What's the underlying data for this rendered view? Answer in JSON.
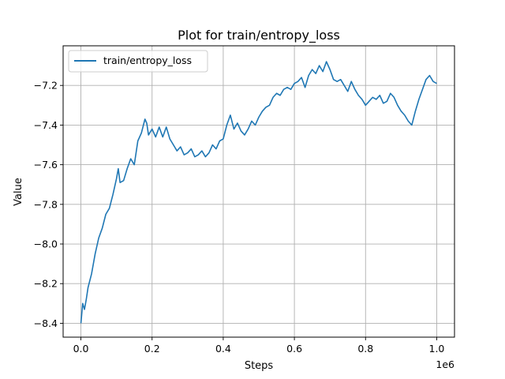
{
  "chart_data": {
    "type": "line",
    "title": "Plot for train/entropy_loss",
    "xlabel": "Steps",
    "ylabel": "Value",
    "x_offset_label": "1e6",
    "xlim": [
      -0.05,
      1.05
    ],
    "ylim": [
      -8.47,
      -7.0
    ],
    "xticks": [
      0.0,
      0.2,
      0.4,
      0.6,
      0.8,
      1.0
    ],
    "xtick_labels": [
      "0.0",
      "0.2",
      "0.4",
      "0.6",
      "0.8",
      "1.0"
    ],
    "yticks": [
      -8.4,
      -8.2,
      -8.0,
      -7.8,
      -7.6,
      -7.4,
      -7.2
    ],
    "ytick_labels": [
      "−8.4",
      "−8.2",
      "−8.0",
      "−7.8",
      "−7.6",
      "−7.4",
      "−7.2"
    ],
    "grid": true,
    "legend_position": "top-left",
    "series": [
      {
        "name": "train/entropy_loss",
        "color": "#1f77b4",
        "x": [
          0.0,
          0.005,
          0.01,
          0.015,
          0.02,
          0.03,
          0.04,
          0.05,
          0.06,
          0.07,
          0.08,
          0.09,
          0.1,
          0.105,
          0.11,
          0.12,
          0.13,
          0.14,
          0.15,
          0.16,
          0.17,
          0.18,
          0.185,
          0.19,
          0.2,
          0.21,
          0.22,
          0.23,
          0.24,
          0.25,
          0.26,
          0.27,
          0.28,
          0.29,
          0.3,
          0.31,
          0.32,
          0.33,
          0.34,
          0.35,
          0.36,
          0.37,
          0.38,
          0.39,
          0.4,
          0.41,
          0.42,
          0.43,
          0.44,
          0.45,
          0.46,
          0.47,
          0.48,
          0.49,
          0.5,
          0.51,
          0.52,
          0.53,
          0.54,
          0.55,
          0.56,
          0.57,
          0.58,
          0.59,
          0.6,
          0.61,
          0.62,
          0.63,
          0.64,
          0.65,
          0.66,
          0.67,
          0.68,
          0.69,
          0.7,
          0.71,
          0.72,
          0.73,
          0.74,
          0.75,
          0.76,
          0.77,
          0.78,
          0.79,
          0.8,
          0.81,
          0.82,
          0.83,
          0.84,
          0.85,
          0.86,
          0.87,
          0.88,
          0.89,
          0.9,
          0.91,
          0.92,
          0.93,
          0.94,
          0.95,
          0.96,
          0.97,
          0.98,
          0.99,
          1.0
        ],
        "y": [
          -8.4,
          -8.3,
          -8.33,
          -8.28,
          -8.22,
          -8.15,
          -8.05,
          -7.97,
          -7.92,
          -7.85,
          -7.82,
          -7.75,
          -7.67,
          -7.62,
          -7.69,
          -7.68,
          -7.62,
          -7.57,
          -7.6,
          -7.48,
          -7.44,
          -7.37,
          -7.39,
          -7.45,
          -7.42,
          -7.46,
          -7.41,
          -7.46,
          -7.41,
          -7.47,
          -7.5,
          -7.53,
          -7.51,
          -7.55,
          -7.54,
          -7.52,
          -7.56,
          -7.55,
          -7.53,
          -7.56,
          -7.54,
          -7.5,
          -7.52,
          -7.48,
          -7.47,
          -7.4,
          -7.35,
          -7.42,
          -7.39,
          -7.43,
          -7.45,
          -7.42,
          -7.38,
          -7.4,
          -7.36,
          -7.33,
          -7.31,
          -7.3,
          -7.26,
          -7.24,
          -7.25,
          -7.22,
          -7.21,
          -7.22,
          -7.19,
          -7.18,
          -7.16,
          -7.21,
          -7.15,
          -7.12,
          -7.14,
          -7.1,
          -7.13,
          -7.08,
          -7.12,
          -7.17,
          -7.18,
          -7.17,
          -7.2,
          -7.23,
          -7.18,
          -7.22,
          -7.25,
          -7.27,
          -7.3,
          -7.28,
          -7.26,
          -7.27,
          -7.25,
          -7.29,
          -7.28,
          -7.24,
          -7.26,
          -7.3,
          -7.33,
          -7.35,
          -7.38,
          -7.4,
          -7.33,
          -7.27,
          -7.22,
          -7.17,
          -7.15,
          -7.18,
          -7.19
        ]
      }
    ]
  }
}
